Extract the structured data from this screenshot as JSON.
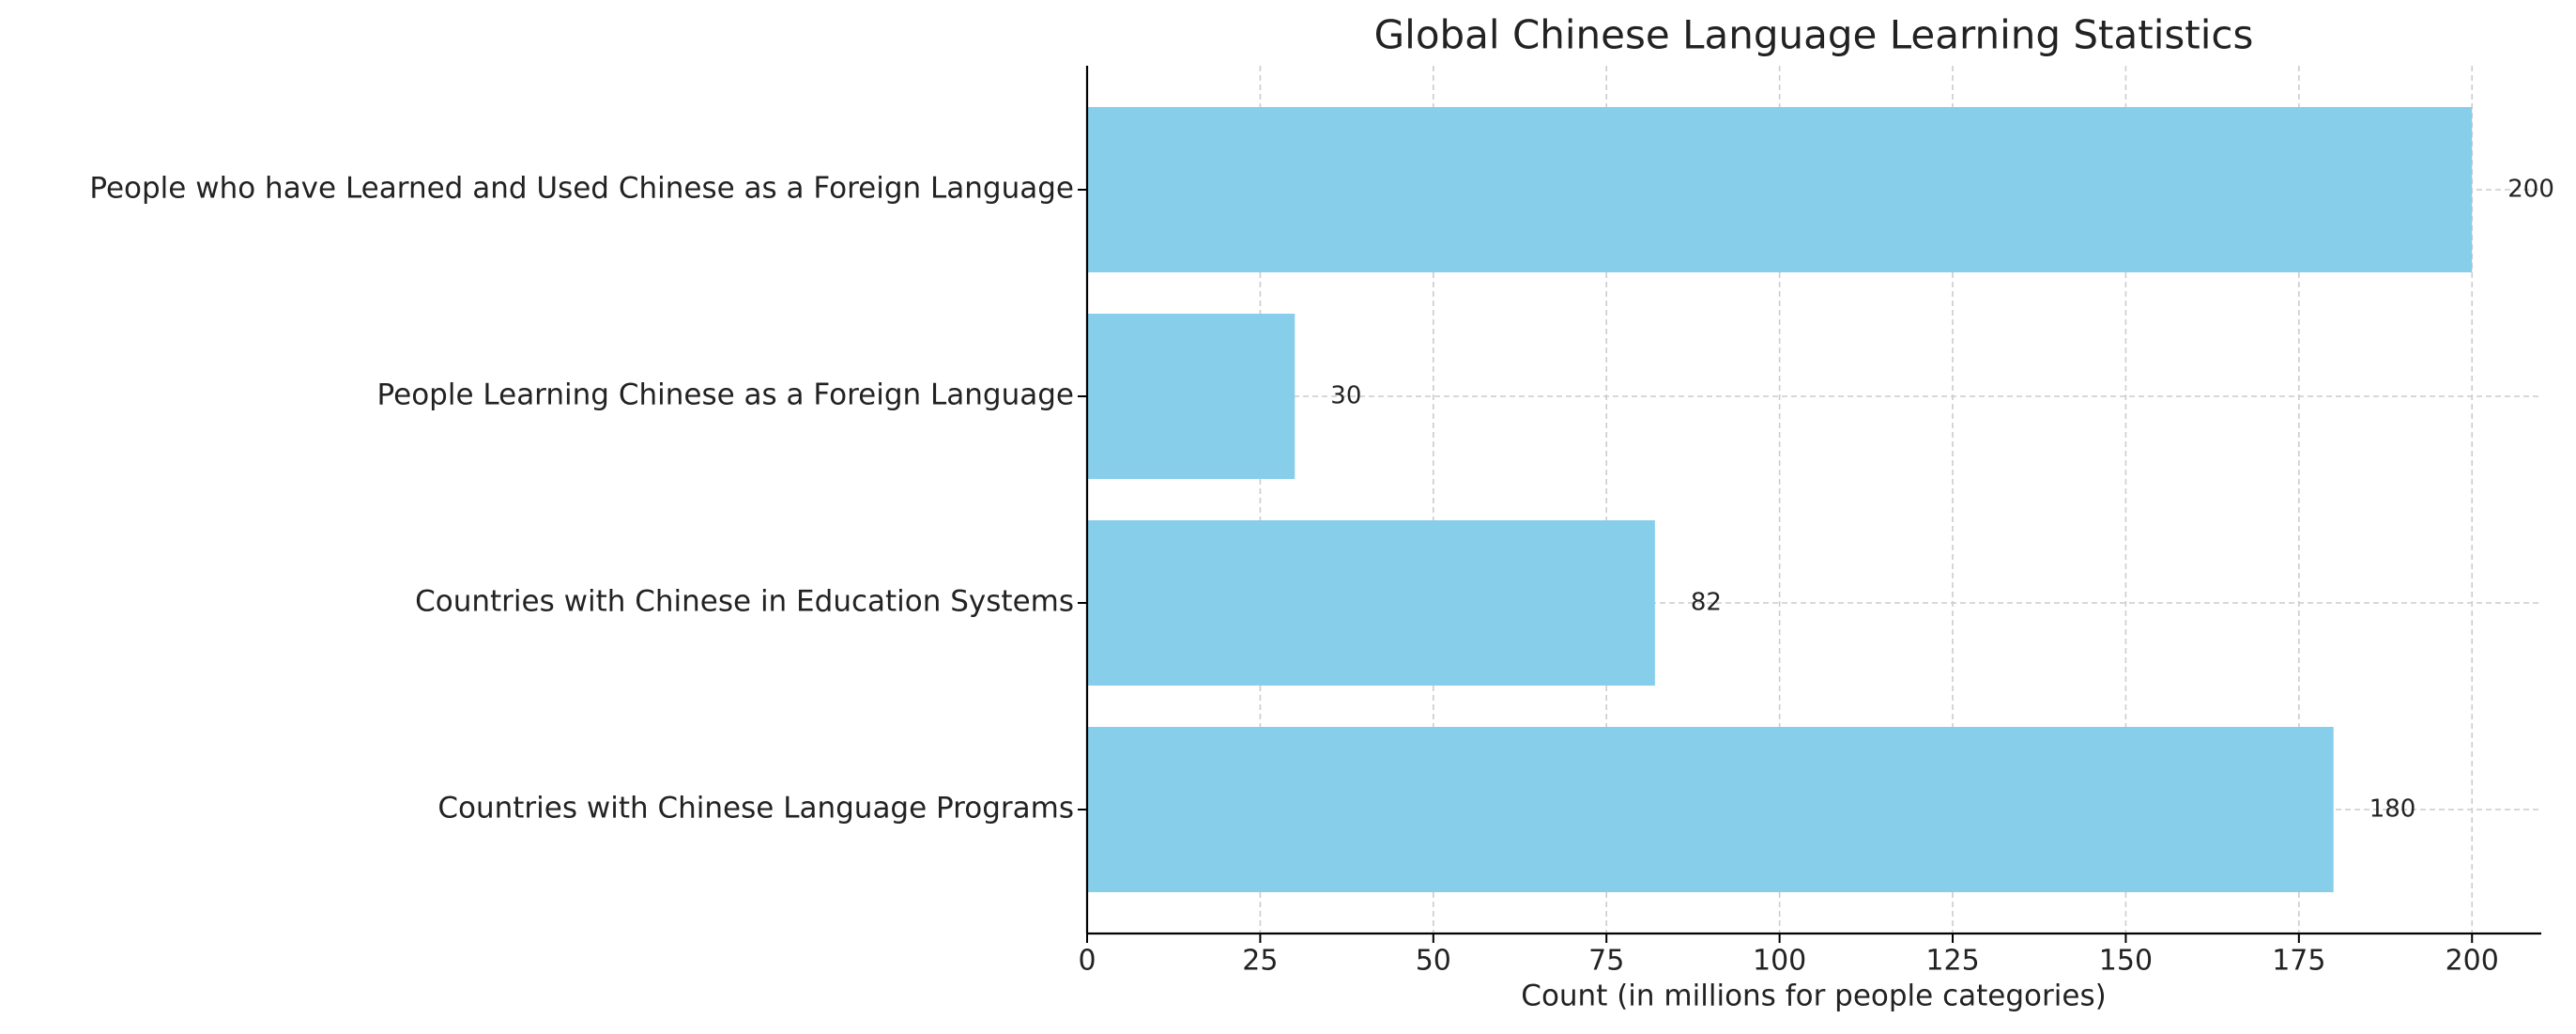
{
  "chart_data": {
    "type": "barh",
    "title": "Global Chinese Language Learning Statistics",
    "xlabel": "Count (in millions for people categories)",
    "categories": [
      "Countries with Chinese Language Programs",
      "Countries with Chinese in Education Systems",
      "People Learning Chinese as a Foreign Language",
      "People who have Learned and Used Chinese as a Foreign Language"
    ],
    "values": [
      180,
      82,
      30,
      200
    ],
    "color": "#87ceeb",
    "xlim": [
      0,
      210
    ],
    "xticks": [
      0,
      25,
      50,
      75,
      100,
      125,
      150,
      175,
      200
    ],
    "grid": true
  }
}
